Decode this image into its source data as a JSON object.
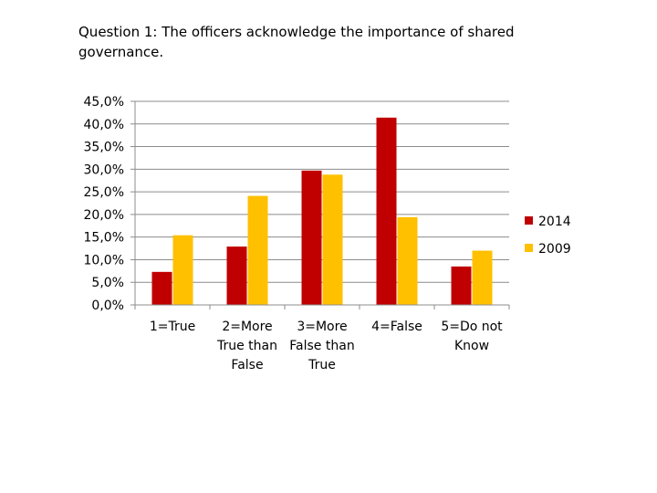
{
  "chart_data": {
    "type": "bar",
    "title": "Question 1: The officers acknowledge the importance of shared governance.",
    "categories": [
      [
        "1=True"
      ],
      [
        "2=More",
        "True than",
        "False"
      ],
      [
        "3=More",
        "False than",
        "True"
      ],
      [
        "4=False"
      ],
      [
        "5=Do not",
        "Know"
      ]
    ],
    "series": [
      {
        "name": "2014",
        "color": "#C00000",
        "values": [
          7.3,
          12.9,
          29.7,
          41.4,
          8.5
        ]
      },
      {
        "name": "2009",
        "color": "#FFC000",
        "values": [
          15.4,
          24.1,
          28.8,
          19.4,
          12.0
        ]
      }
    ],
    "ylim": [
      0,
      45
    ],
    "ytick_step": 5,
    "ytick_labels": [
      "0,0%",
      "5,0%",
      "10,0%",
      "15,0%",
      "20,0%",
      "25,0%",
      "30,0%",
      "35,0%",
      "40,0%",
      "45,0%"
    ],
    "grid": true,
    "legend": "right"
  }
}
